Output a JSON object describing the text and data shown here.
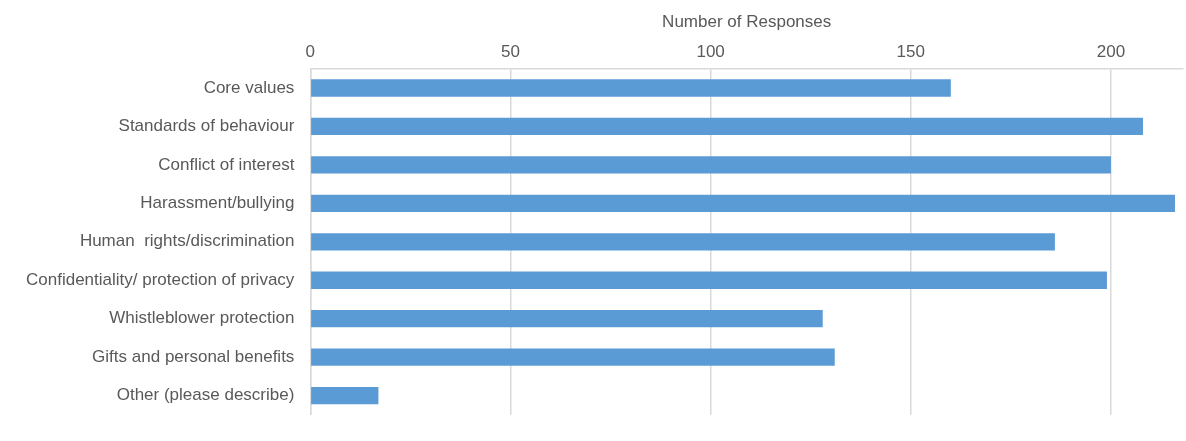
{
  "chart_data": {
    "type": "bar",
    "orientation": "horizontal",
    "xlabel": "Number of Responses",
    "categories": [
      "Core values",
      "Standards of behaviour",
      "Conflict of interest",
      "Harassment/bullying",
      "Human  rights/discrimination",
      "Confidentiality/ protection of privacy",
      "Whistleblower protection",
      "Gifts and personal benefits",
      "Other (please describe)"
    ],
    "values": [
      160,
      208,
      200,
      216,
      186,
      199,
      128,
      131,
      17
    ],
    "color": "#5b9bd5",
    "xlim": [
      0,
      218
    ],
    "xticks": [
      0,
      50,
      100,
      150,
      200
    ],
    "grid": "x",
    "legend": false
  }
}
